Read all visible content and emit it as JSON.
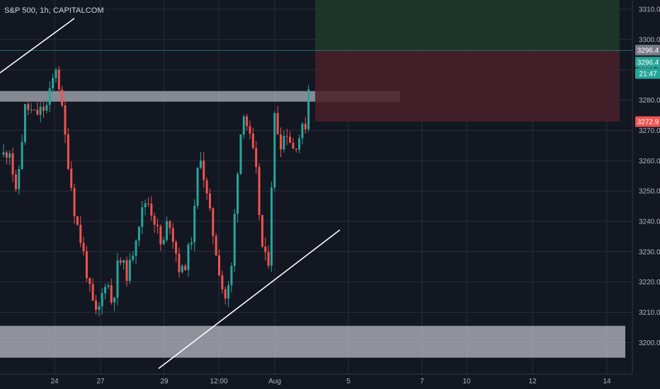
{
  "header": {
    "title": "S&P 500, 1h, CAPITALCOM"
  },
  "colors": {
    "background": "#131722",
    "grid": "#2a2e39",
    "up": "#26a69a",
    "down": "#ef5350",
    "zone": "#b2b5be",
    "target_box": "#1e3b2a",
    "stop_box": "#4a2029",
    "trend_line": "#ffffff"
  },
  "chart_data": {
    "type": "candlestick",
    "title": "S&P 500, 1h, CAPITALCOM",
    "ylim": [
      3193,
      3316
    ],
    "y_ticks": [
      "3310.0",
      "3300.0",
      "3290.0",
      "3280.0",
      "3270.0",
      "3260.0",
      "3250.0",
      "3240.0",
      "3230.0",
      "3220.0",
      "3210.0",
      "3200.0"
    ],
    "x_ticks": [
      "24",
      "27",
      "29",
      "12:00",
      "Aug",
      "5",
      "7",
      "10",
      "12",
      "14"
    ],
    "grid": true,
    "price_tags": [
      {
        "label": "3296.4",
        "kind": "last",
        "color": "#787b86"
      },
      {
        "label": "3296.4",
        "kind": "bid",
        "color": "#26a69a"
      },
      {
        "label": "21:47",
        "kind": "countdown",
        "color": "#26a69a"
      },
      {
        "label": "3272.9",
        "kind": "stop",
        "color": "#ef5350"
      }
    ],
    "zones": [
      {
        "name": "resistance",
        "from": 3279.5,
        "to": 3283
      },
      {
        "name": "support",
        "from": 3195,
        "to": 3205.5
      }
    ],
    "position": {
      "entry": 3296.4,
      "target": 3316,
      "stop": 3272.9
    },
    "trend_lines": [
      {
        "name": "upper",
        "from": [
          0,
          3284
        ],
        "to": [
          18,
          3310
        ]
      },
      {
        "name": "lower",
        "from": [
          37,
          3193
        ],
        "to": [
          83,
          3238.5
        ]
      }
    ],
    "candles_source_points": [
      [
        0,
        3262
      ],
      [
        2,
        3264
      ],
      [
        4,
        3248
      ],
      [
        7,
        3278
      ],
      [
        10,
        3275
      ],
      [
        14,
        3278
      ],
      [
        17,
        3292
      ],
      [
        20,
        3266
      ],
      [
        23,
        3242
      ],
      [
        26,
        3228
      ],
      [
        28,
        3215
      ],
      [
        30,
        3208
      ],
      [
        33,
        3222
      ],
      [
        35,
        3212
      ],
      [
        37,
        3228
      ],
      [
        40,
        3222
      ],
      [
        43,
        3238
      ],
      [
        46,
        3248
      ],
      [
        49,
        3239
      ],
      [
        51,
        3230
      ],
      [
        53,
        3242
      ],
      [
        55,
        3232
      ],
      [
        57,
        3222
      ],
      [
        59,
        3228
      ],
      [
        61,
        3238
      ],
      [
        63,
        3265
      ],
      [
        65,
        3250
      ],
      [
        67,
        3238
      ],
      [
        69,
        3226
      ],
      [
        71,
        3214
      ],
      [
        73,
        3220
      ],
      [
        75,
        3255
      ],
      [
        77,
        3278
      ],
      [
        79,
        3268
      ],
      [
        81,
        3258
      ],
      [
        83,
        3232
      ],
      [
        85,
        3224
      ],
      [
        87,
        3275
      ],
      [
        89,
        3266
      ],
      [
        91,
        3270
      ],
      [
        93,
        3264
      ],
      [
        95,
        3268
      ],
      [
        97,
        3272
      ],
      [
        99,
        3296
      ]
    ]
  }
}
